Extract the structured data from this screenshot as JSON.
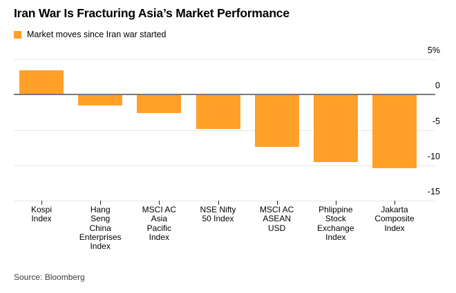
{
  "title": "Iran War Is Fracturing Asia’s Market Performance",
  "legend": {
    "label": "Market moves since Iran war started"
  },
  "source": "Source: Bloomberg",
  "colors": {
    "bar_orange": "#FFA028",
    "zero_line": "#77787B",
    "gridline": "#E6E6E6",
    "tick": "#222222"
  },
  "chart_data": {
    "type": "bar",
    "title": "Iran War Is Fracturing Asia’s Market Performance",
    "legend_entries": [
      "Market moves since Iran war started"
    ],
    "legend_position": "top-left",
    "unit": "%",
    "categories": [
      "Kospi Index",
      "Hang Seng China Enterprises Index",
      "MSCI AC Asia Pacific Index",
      "NSE Nifty 50 Index",
      "MSCI AC ASEAN USD",
      "Phlippine Stock Exchange Index",
      "Jakarta Composite Index"
    ],
    "category_lines": [
      [
        "Kospi",
        "Index"
      ],
      [
        "Hang",
        "Seng",
        "China",
        "Enterprises",
        "Index"
      ],
      [
        "MSCI AC",
        "Asia",
        "Pacific",
        "Index"
      ],
      [
        "NSE Nifty",
        "50 Index"
      ],
      [
        "MSCI AC",
        "ASEAN",
        "USD"
      ],
      [
        "Phlippine",
        "Stock",
        "Exchange",
        "Index"
      ],
      [
        "Jakarta",
        "Composite",
        "Index"
      ]
    ],
    "values": [
      3.4,
      -1.5,
      -2.6,
      -4.9,
      -7.4,
      -9.5,
      -10.4
    ],
    "xlabel": "",
    "ylabel": "",
    "ylim": [
      -15,
      5
    ],
    "yticks": [
      5,
      0,
      -5,
      -10,
      -15
    ],
    "ytick_labels": [
      "5%",
      "0",
      "-5",
      "-10",
      "-15"
    ],
    "grid": true,
    "bar_color": "#FFA028"
  }
}
